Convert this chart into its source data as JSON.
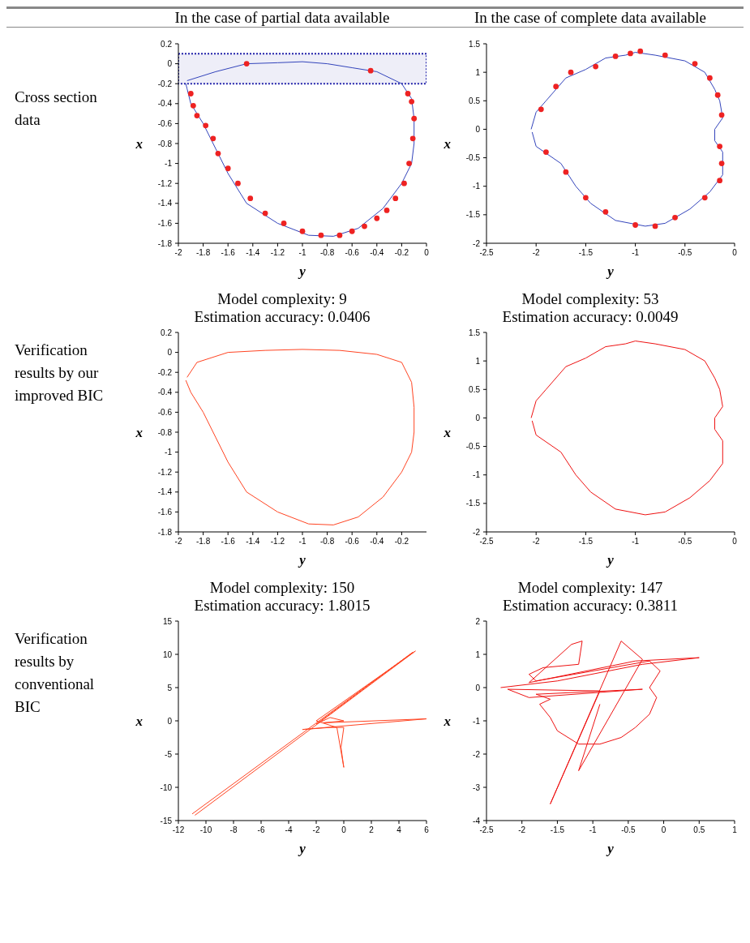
{
  "chart_data": [
    {
      "type": "line",
      "annotations": [
        "In the case of partial data available",
        "Cross section data"
      ],
      "xlabel": "y",
      "ylabel": "x",
      "xlim": [
        -2,
        0
      ],
      "xticks": [
        -2,
        -1.8,
        -1.6,
        -1.4,
        -1.2,
        -1,
        -0.8,
        -0.6,
        -0.4,
        -0.2,
        0
      ],
      "ylim": [
        -1.8,
        0.2
      ],
      "yticks": [
        -1.8,
        -1.6,
        -1.4,
        -1.2,
        -1,
        -0.8,
        -0.6,
        -0.4,
        -0.2,
        0,
        0.2
      ],
      "bands": [
        {
          "axis": "y",
          "from": -0.2,
          "to": 0.1,
          "color": "#2222aa"
        }
      ],
      "series": [
        {
          "type": "line",
          "color": "#3344bb",
          "marker": "none",
          "x": [
            -1.93,
            -1.7,
            -1.45,
            -1.2,
            -1.0,
            -0.8,
            -0.6,
            -0.4,
            -0.2,
            -0.12,
            -0.1,
            -0.1,
            -0.12,
            -0.2,
            -0.35,
            -0.55,
            -0.75,
            -0.95,
            -1.2,
            -1.45,
            -1.6,
            -1.7,
            -1.8,
            -1.9,
            -1.93,
            -1.94
          ],
          "values": [
            -0.17,
            -0.08,
            0.0,
            0.01,
            0.02,
            0.0,
            -0.04,
            -0.08,
            -0.2,
            -0.35,
            -0.55,
            -0.8,
            -1.0,
            -1.2,
            -1.45,
            -1.65,
            -1.73,
            -1.72,
            -1.6,
            -1.4,
            -1.1,
            -0.85,
            -0.6,
            -0.4,
            -0.25,
            -0.2
          ]
        },
        {
          "type": "scatter",
          "color": "#ee2222",
          "marker": "circle",
          "x": [
            -1.45,
            -0.45,
            -1.9,
            -1.88,
            -1.85,
            -1.78,
            -1.72,
            -1.68,
            -1.6,
            -1.52,
            -1.42,
            -1.3,
            -1.15,
            -1.0,
            -0.85,
            -0.7,
            -0.6,
            -0.5,
            -0.4,
            -0.32,
            -0.25,
            -0.18,
            -0.14,
            -0.11,
            -0.1,
            -0.12,
            -0.15
          ],
          "values": [
            0.0,
            -0.07,
            -0.3,
            -0.42,
            -0.52,
            -0.62,
            -0.75,
            -0.9,
            -1.05,
            -1.2,
            -1.35,
            -1.5,
            -1.6,
            -1.68,
            -1.72,
            -1.72,
            -1.68,
            -1.63,
            -1.55,
            -1.47,
            -1.35,
            -1.2,
            -1.0,
            -0.75,
            -0.55,
            -0.38,
            -0.3
          ]
        }
      ]
    },
    {
      "type": "line",
      "annotations": [
        "In the case of complete data available"
      ],
      "xlabel": "y",
      "ylabel": "x",
      "xlim": [
        -2.5,
        0
      ],
      "xticks": [
        -2.5,
        -2,
        -1.5,
        -1,
        -0.5,
        0
      ],
      "ylim": [
        -2,
        1.5
      ],
      "yticks": [
        -2,
        -1.5,
        -1,
        -0.5,
        0,
        0.5,
        1,
        1.5
      ],
      "series": [
        {
          "type": "line",
          "color": "#3344bb",
          "marker": "none",
          "x": [
            -2.05,
            -2.0,
            -1.9,
            -1.7,
            -1.5,
            -1.3,
            -1.1,
            -1.0,
            -0.8,
            -0.5,
            -0.3,
            -0.2,
            -0.15,
            -0.12,
            -0.2,
            -0.2,
            -0.12,
            -0.12,
            -0.25,
            -0.45,
            -0.7,
            -0.9,
            -1.2,
            -1.45,
            -1.6,
            -1.75,
            -2.0,
            -2.04
          ],
          "values": [
            0.0,
            0.3,
            0.5,
            0.9,
            1.05,
            1.25,
            1.3,
            1.35,
            1.3,
            1.2,
            1.0,
            0.7,
            0.5,
            0.2,
            0.0,
            -0.2,
            -0.4,
            -0.8,
            -1.1,
            -1.4,
            -1.65,
            -1.7,
            -1.6,
            -1.3,
            -1.0,
            -0.6,
            -0.3,
            -0.05
          ]
        },
        {
          "type": "scatter",
          "color": "#ee2222",
          "marker": "circle",
          "x": [
            -1.95,
            -1.8,
            -1.65,
            -1.4,
            -1.2,
            -1.05,
            -0.95,
            -0.7,
            -0.4,
            -0.25,
            -0.17,
            -0.13,
            -0.15,
            -0.13,
            -0.15,
            -0.3,
            -0.6,
            -0.8,
            -1.0,
            -1.3,
            -1.5,
            -1.7,
            -1.9
          ],
          "values": [
            0.35,
            0.75,
            1.0,
            1.1,
            1.28,
            1.33,
            1.37,
            1.3,
            1.15,
            0.9,
            0.6,
            0.25,
            -0.3,
            -0.6,
            -0.9,
            -1.2,
            -1.55,
            -1.7,
            -1.68,
            -1.45,
            -1.2,
            -0.75,
            -0.4
          ]
        }
      ]
    },
    {
      "type": "line",
      "title": "Model complexity: 9",
      "subtitle": "Estimation accuracy: 0.0406",
      "annotations": [
        "Verification results by our improved BIC"
      ],
      "xlabel": "y",
      "ylabel": "x",
      "xlim": [
        -2,
        0
      ],
      "xticks": [
        -2,
        -1.8,
        -1.6,
        -1.4,
        -1.2,
        -1,
        -0.8,
        -0.6,
        -0.4,
        -0.2
      ],
      "ylim": [
        -1.8,
        0.2
      ],
      "yticks": [
        -1.8,
        -1.6,
        -1.4,
        -1.2,
        -1,
        -0.8,
        -0.6,
        -0.4,
        -0.2,
        0,
        0.2
      ],
      "series": [
        {
          "type": "line",
          "color": "#ff4422",
          "marker": "none",
          "x": [
            -1.93,
            -1.85,
            -1.6,
            -1.3,
            -1.0,
            -0.7,
            -0.4,
            -0.2,
            -0.12,
            -0.1,
            -0.1,
            -0.12,
            -0.2,
            -0.35,
            -0.55,
            -0.75,
            -0.95,
            -1.2,
            -1.45,
            -1.6,
            -1.7,
            -1.8,
            -1.9,
            -1.94
          ],
          "values": [
            -0.25,
            -0.1,
            0.0,
            0.02,
            0.03,
            0.02,
            -0.02,
            -0.1,
            -0.3,
            -0.55,
            -0.8,
            -1.0,
            -1.2,
            -1.45,
            -1.65,
            -1.73,
            -1.72,
            -1.6,
            -1.4,
            -1.1,
            -0.85,
            -0.6,
            -0.4,
            -0.28
          ]
        }
      ]
    },
    {
      "type": "line",
      "title": "Model complexity: 53",
      "subtitle": "Estimation accuracy: 0.0049",
      "xlabel": "y",
      "ylabel": "x",
      "xlim": [
        -2.5,
        0
      ],
      "xticks": [
        -2.5,
        -2,
        -1.5,
        -1,
        -0.5,
        0
      ],
      "ylim": [
        -2,
        1.5
      ],
      "yticks": [
        -2,
        -1.5,
        -1,
        -0.5,
        0,
        0.5,
        1,
        1.5
      ],
      "series": [
        {
          "type": "line",
          "color": "#ee1111",
          "marker": "none",
          "x": [
            -2.05,
            -2.0,
            -1.9,
            -1.7,
            -1.5,
            -1.3,
            -1.1,
            -1.0,
            -0.8,
            -0.5,
            -0.3,
            -0.2,
            -0.15,
            -0.12,
            -0.2,
            -0.2,
            -0.12,
            -0.12,
            -0.25,
            -0.45,
            -0.7,
            -0.9,
            -1.2,
            -1.45,
            -1.6,
            -1.75,
            -2.0,
            -2.04
          ],
          "values": [
            0.0,
            0.3,
            0.5,
            0.9,
            1.05,
            1.25,
            1.3,
            1.35,
            1.3,
            1.2,
            1.0,
            0.7,
            0.5,
            0.2,
            0.0,
            -0.2,
            -0.4,
            -0.8,
            -1.1,
            -1.4,
            -1.65,
            -1.7,
            -1.6,
            -1.3,
            -1.0,
            -0.6,
            -0.3,
            -0.05
          ]
        }
      ]
    },
    {
      "type": "line",
      "title": "Model complexity: 150",
      "subtitle": "Estimation accuracy: 1.8015",
      "annotations": [
        "Verification results by conventional BIC"
      ],
      "xlabel": "y",
      "ylabel": "x",
      "xlim": [
        -12,
        6
      ],
      "xticks": [
        -12,
        -10,
        -8,
        -6,
        -4,
        -2,
        0,
        2,
        4,
        6
      ],
      "ylim": [
        -15,
        15
      ],
      "yticks": [
        -15,
        -10,
        -5,
        0,
        5,
        10,
        15
      ],
      "series": [
        {
          "type": "line",
          "color": "#ff4422",
          "marker": "none",
          "x": [
            -11,
            5,
            -2,
            -1,
            0,
            -1.5,
            6,
            -3,
            -1,
            0,
            -0.2,
            0,
            -0.5,
            -2,
            5.2,
            -10.8
          ],
          "values": [
            -14,
            10.3,
            -0.5,
            0.5,
            0,
            -0.3,
            0.3,
            -1.3,
            -1,
            -1,
            -4,
            -7,
            -1,
            0,
            10.5,
            -14.2
          ]
        }
      ]
    },
    {
      "type": "line",
      "title": "Model complexity: 147",
      "subtitle": "Estimation accuracy: 0.3811",
      "xlabel": "y",
      "ylabel": "x",
      "xlim": [
        -2.5,
        1
      ],
      "xticks": [
        -2.5,
        -2,
        -1.5,
        -1,
        -0.5,
        0,
        0.5,
        1
      ],
      "ylim": [
        -4,
        2
      ],
      "yticks": [
        -4,
        -3,
        -2,
        -1,
        0,
        1,
        2
      ],
      "series": [
        {
          "type": "line",
          "color": "#ee1111",
          "marker": "none",
          "x": [
            -2.3,
            -1.5,
            -0.3,
            0.5,
            -0.4,
            -1.9,
            -1.3,
            -1.15,
            -1.2,
            -1.7,
            -1.9,
            -1.8,
            -0.2,
            -0.05,
            -0.2,
            -0.1,
            -0.2,
            -0.4,
            -0.6,
            -0.9,
            -1.2,
            -1.5,
            -1.6,
            -1.75,
            -1.6,
            -1.8,
            -0.3,
            -1.9,
            -2.2,
            -0.9,
            -1.6,
            -0.6,
            -0.3,
            -1.2,
            -0.9
          ],
          "values": [
            0,
            0.2,
            0.7,
            0.9,
            0.8,
            0.15,
            1.3,
            1.4,
            0.7,
            0.6,
            0.4,
            0.2,
            0.8,
            0.5,
            0,
            -0.3,
            -0.8,
            -1.2,
            -1.5,
            -1.7,
            -1.7,
            -1.3,
            -0.9,
            -0.5,
            -0.35,
            -0.2,
            -0.05,
            -0.3,
            -0.05,
            -0.1,
            -3.5,
            1.4,
            0.85,
            -2.5,
            -0.5
          ]
        }
      ]
    }
  ]
}
